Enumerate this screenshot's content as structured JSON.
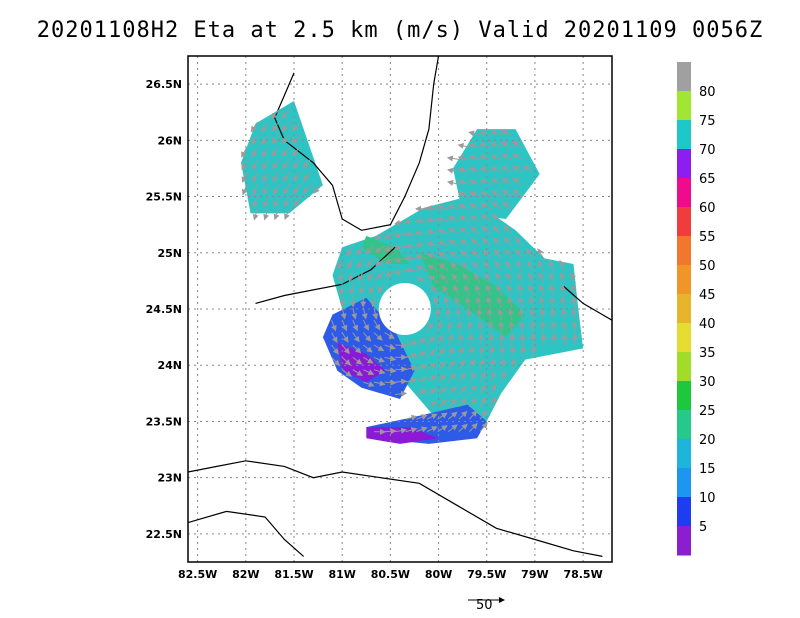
{
  "title": "20201108H2 Eta at 2.5 km (m/s) Valid 20201109 0056Z",
  "map": {
    "lat_range": [
      22.25,
      26.75
    ],
    "lon_range": [
      -82.6,
      -78.2
    ],
    "lat_ticks": [
      {
        "value": 26.5,
        "label": "26.5N"
      },
      {
        "value": 26.0,
        "label": "26N"
      },
      {
        "value": 25.5,
        "label": "25.5N"
      },
      {
        "value": 25.0,
        "label": "25N"
      },
      {
        "value": 24.5,
        "label": "24.5N"
      },
      {
        "value": 24.0,
        "label": "24N"
      },
      {
        "value": 23.5,
        "label": "23.5N"
      },
      {
        "value": 23.0,
        "label": "23N"
      },
      {
        "value": 22.5,
        "label": "22.5N"
      }
    ],
    "lon_ticks": [
      {
        "value": -82.5,
        "label": "82.5W"
      },
      {
        "value": -82.0,
        "label": "82W"
      },
      {
        "value": -81.5,
        "label": "81.5W"
      },
      {
        "value": -81.0,
        "label": "81W"
      },
      {
        "value": -80.5,
        "label": "80.5W"
      },
      {
        "value": -80.0,
        "label": "80W"
      },
      {
        "value": -79.5,
        "label": "79.5W"
      },
      {
        "value": -79.0,
        "label": "79W"
      },
      {
        "value": -78.5,
        "label": "78.5W"
      }
    ],
    "grid": "dotted",
    "storm_center": {
      "lon": -80.35,
      "lat": 24.5
    },
    "wind_regions": [
      {
        "name": "west-gulf-patch",
        "color": "#2ec4c4",
        "polygon": [
          [
            -81.9,
            26.15
          ],
          [
            -81.5,
            26.35
          ],
          [
            -81.3,
            25.85
          ],
          [
            -81.2,
            25.6
          ],
          [
            -81.55,
            25.35
          ],
          [
            -81.95,
            25.35
          ],
          [
            -82.05,
            25.8
          ]
        ]
      },
      {
        "name": "northeast-patch",
        "color": "#2ec4c4",
        "polygon": [
          [
            -79.85,
            25.75
          ],
          [
            -79.6,
            26.1
          ],
          [
            -79.2,
            26.1
          ],
          [
            -78.95,
            25.7
          ],
          [
            -79.3,
            25.3
          ],
          [
            -79.75,
            25.35
          ]
        ]
      },
      {
        "name": "main-shield",
        "color": "#2ec4c4",
        "polygon": [
          [
            -81.0,
            25.05
          ],
          [
            -80.65,
            25.15
          ],
          [
            -80.15,
            25.4
          ],
          [
            -79.7,
            25.5
          ],
          [
            -79.2,
            25.2
          ],
          [
            -78.9,
            24.95
          ],
          [
            -78.6,
            24.9
          ],
          [
            -78.55,
            24.5
          ],
          [
            -78.5,
            24.15
          ],
          [
            -79.1,
            24.05
          ],
          [
            -79.35,
            23.75
          ],
          [
            -79.5,
            23.5
          ],
          [
            -79.9,
            23.4
          ],
          [
            -80.1,
            23.6
          ],
          [
            -80.4,
            23.9
          ],
          [
            -80.75,
            24.15
          ],
          [
            -81.0,
            24.5
          ],
          [
            -81.1,
            24.8
          ]
        ]
      },
      {
        "name": "southwest-blue-band",
        "color": "#2d5ae6",
        "polygon": [
          [
            -81.1,
            24.45
          ],
          [
            -80.75,
            24.6
          ],
          [
            -80.45,
            24.3
          ],
          [
            -80.25,
            23.95
          ],
          [
            -80.4,
            23.7
          ],
          [
            -80.8,
            23.8
          ],
          [
            -81.05,
            23.95
          ],
          [
            -81.2,
            24.25
          ]
        ]
      },
      {
        "name": "southern-blue-band",
        "color": "#2d5ae6",
        "polygon": [
          [
            -80.2,
            23.55
          ],
          [
            -79.7,
            23.65
          ],
          [
            -79.5,
            23.5
          ],
          [
            -79.6,
            23.35
          ],
          [
            -80.1,
            23.3
          ],
          [
            -80.7,
            23.35
          ],
          [
            -80.75,
            23.45
          ]
        ]
      },
      {
        "name": "purple-core-southwest",
        "color": "#8a1ad6",
        "polygon": [
          [
            -81.05,
            24.2
          ],
          [
            -80.75,
            24.1
          ],
          [
            -80.55,
            23.95
          ],
          [
            -80.75,
            23.85
          ],
          [
            -81.0,
            23.95
          ]
        ]
      },
      {
        "name": "purple-core-south",
        "color": "#8a1ad6",
        "polygon": [
          [
            -80.75,
            23.45
          ],
          [
            -80.3,
            23.45
          ],
          [
            -80.0,
            23.35
          ],
          [
            -80.4,
            23.3
          ],
          [
            -80.75,
            23.35
          ]
        ]
      },
      {
        "name": "green-band-east",
        "color": "#34c48a",
        "polygon": [
          [
            -80.2,
            25.0
          ],
          [
            -79.8,
            24.9
          ],
          [
            -79.4,
            24.7
          ],
          [
            -79.1,
            24.45
          ],
          [
            -79.3,
            24.25
          ],
          [
            -79.7,
            24.5
          ],
          [
            -80.05,
            24.7
          ]
        ]
      },
      {
        "name": "green-strip-keys",
        "color": "#34c48a",
        "polygon": [
          [
            -80.75,
            25.15
          ],
          [
            -80.45,
            25.05
          ],
          [
            -80.3,
            24.9
          ],
          [
            -80.55,
            24.9
          ],
          [
            -80.8,
            25.05
          ]
        ]
      }
    ],
    "eye": {
      "lon": -80.35,
      "lat": 24.5,
      "radius_deg": 0.27
    },
    "coastline": [
      [
        [
          -81.5,
          26.6
        ],
        [
          -81.6,
          26.4
        ],
        [
          -81.7,
          26.2
        ],
        [
          -81.6,
          26.0
        ],
        [
          -81.3,
          25.8
        ],
        [
          -81.1,
          25.6
        ],
        [
          -81.0,
          25.3
        ],
        [
          -80.8,
          25.2
        ],
        [
          -80.5,
          25.25
        ],
        [
          -80.35,
          25.5
        ],
        [
          -80.2,
          25.8
        ],
        [
          -80.1,
          26.1
        ],
        [
          -80.05,
          26.5
        ],
        [
          -80.0,
          26.75
        ]
      ],
      [
        [
          -82.6,
          23.05
        ],
        [
          -82.3,
          23.1
        ],
        [
          -82.0,
          23.15
        ],
        [
          -81.6,
          23.1
        ],
        [
          -81.3,
          23.0
        ],
        [
          -81.0,
          23.05
        ],
        [
          -80.6,
          23.0
        ],
        [
          -80.2,
          22.95
        ],
        [
          -79.8,
          22.75
        ],
        [
          -79.4,
          22.55
        ],
        [
          -79.0,
          22.45
        ],
        [
          -78.6,
          22.35
        ],
        [
          -78.3,
          22.3
        ]
      ],
      [
        [
          -82.6,
          22.6
        ],
        [
          -82.2,
          22.7
        ],
        [
          -81.8,
          22.65
        ],
        [
          -81.6,
          22.45
        ],
        [
          -81.4,
          22.3
        ]
      ],
      [
        [
          -78.7,
          24.7
        ],
        [
          -78.5,
          24.55
        ],
        [
          -78.3,
          24.45
        ],
        [
          -78.2,
          24.4
        ]
      ],
      [
        [
          -81.9,
          24.55
        ],
        [
          -81.6,
          24.62
        ],
        [
          -81.3,
          24.67
        ],
        [
          -81.0,
          24.72
        ],
        [
          -80.7,
          24.85
        ],
        [
          -80.45,
          25.05
        ]
      ]
    ],
    "arrows": {
      "color": "#9a9a9a",
      "reference_length": 50
    }
  },
  "colorbar": {
    "labels": [
      "80",
      "75",
      "70",
      "65",
      "60",
      "55",
      "50",
      "45",
      "40",
      "35",
      "30",
      "25",
      "20",
      "15",
      "10",
      "5"
    ],
    "colors": [
      "#a0a0a0",
      "#a0e632",
      "#1ec8c8",
      "#8c1ef0",
      "#f00a8c",
      "#f03c3c",
      "#f0782d",
      "#f09628",
      "#e6b42d",
      "#e6dc32",
      "#a0dc28",
      "#1ec83c",
      "#28c88c",
      "#1eb4dc",
      "#1e96f0",
      "#1e3cf0",
      "#8c1ed2"
    ]
  },
  "reference_vector": {
    "label": "50"
  }
}
